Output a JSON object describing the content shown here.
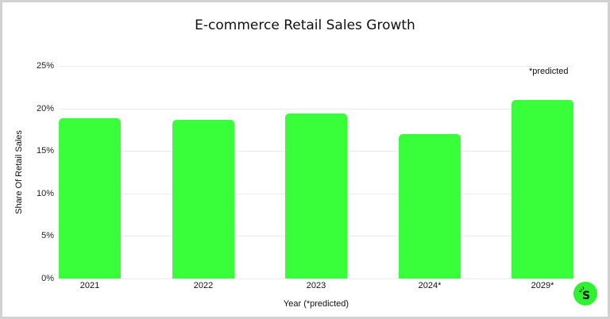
{
  "chart_data": {
    "type": "bar",
    "title": "E-commerce Retail Sales Growth",
    "xlabel": "Year (*predicted)",
    "ylabel": "Share Of Retail Sales",
    "categories": [
      "2021",
      "2022",
      "2023",
      "2024*",
      "2029*"
    ],
    "values": [
      18.8,
      18.7,
      19.4,
      17.0,
      21.0
    ],
    "unit": "%",
    "ylim": [
      0,
      25
    ],
    "yticks": [
      "0%",
      "5%",
      "10%",
      "15%",
      "20%",
      "25%"
    ],
    "grid": true,
    "legend": null,
    "annotations": [
      "*predicted"
    ],
    "bar_color": "#39ff3a"
  },
  "logo": {
    "letter": "S",
    "color": "#2ef22f"
  }
}
